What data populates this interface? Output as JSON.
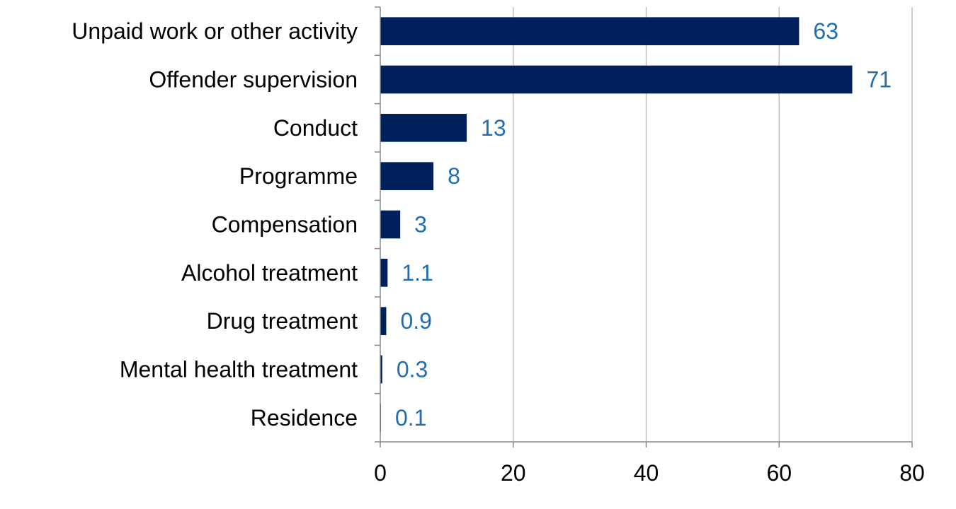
{
  "chart_data": {
    "type": "bar",
    "orientation": "horizontal",
    "categories": [
      "Unpaid work or other activity",
      "Offender supervision",
      "Conduct",
      "Programme",
      "Compensation",
      "Alcohol treatment",
      "Drug treatment",
      "Mental health treatment",
      "Residence"
    ],
    "values": [
      63,
      71,
      13,
      8,
      3,
      1.1,
      0.9,
      0.3,
      0.1
    ],
    "value_labels": [
      "63",
      "71",
      "13",
      "8",
      "3",
      "1.1",
      "0.9",
      "0.3",
      "0.1"
    ],
    "xlim": [
      0,
      80
    ],
    "xticks": [
      0,
      20,
      40,
      60,
      80
    ],
    "xtick_labels": [
      "0",
      "20",
      "40",
      "60",
      "80"
    ],
    "grid": "vertical",
    "legend": "none",
    "colors": {
      "bar": "#00205b",
      "data_label": "#1f6db5",
      "grid": "#c0c0c0",
      "axis": "#888888"
    }
  }
}
